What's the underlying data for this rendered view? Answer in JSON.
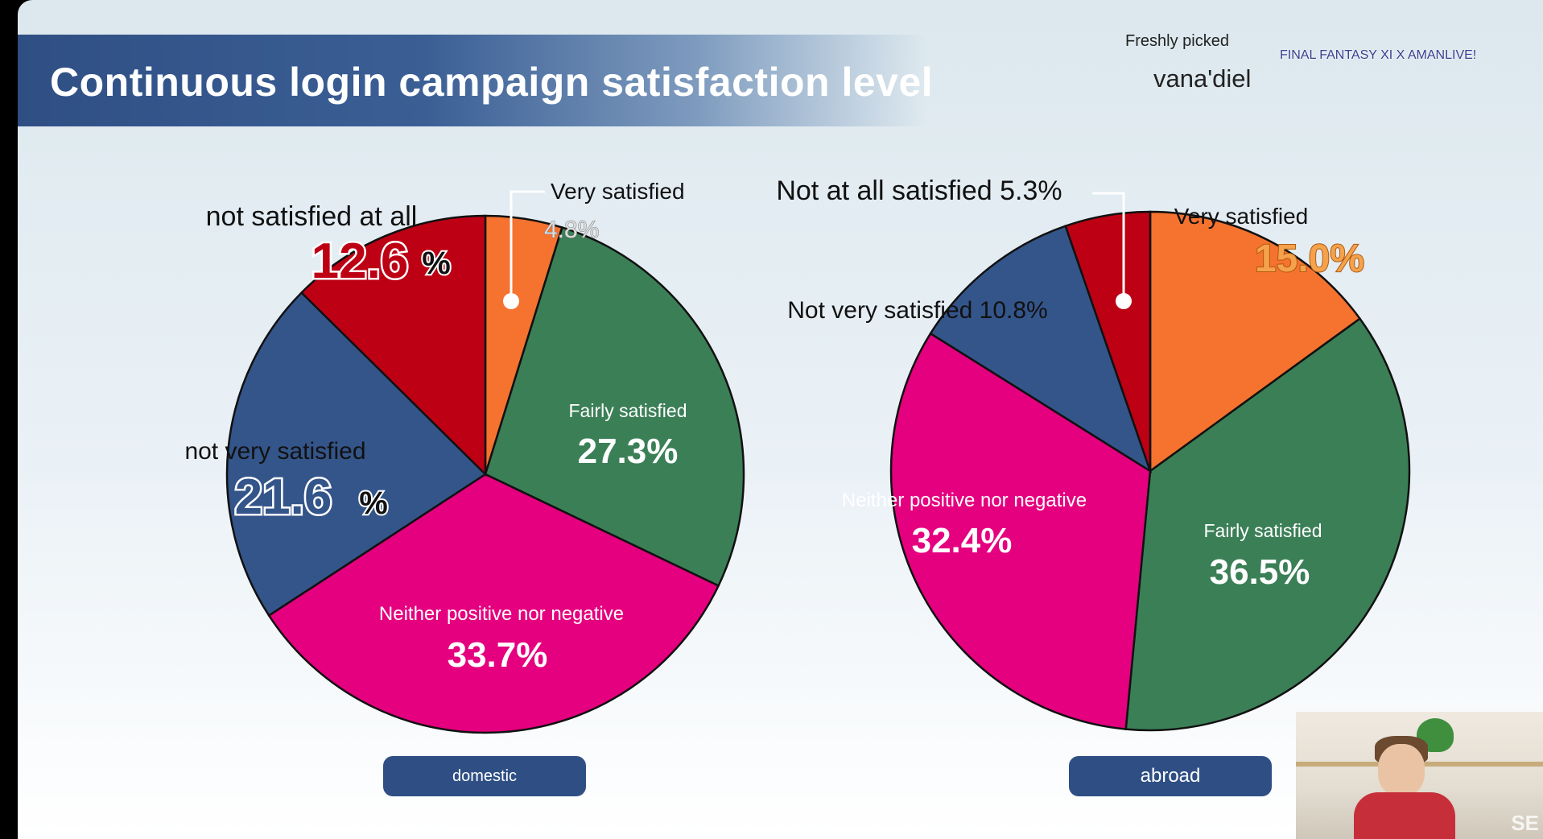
{
  "title": "Continuous login campaign satisfaction level",
  "brand": {
    "tagline": "Freshly picked",
    "name": "vana'diel",
    "logo_text": "FINAL FANTASY XI X AMANLIVE!"
  },
  "chart_data": [
    {
      "type": "pie",
      "name": "domestic",
      "slices": [
        {
          "label": "Very satisfied",
          "value": 4.8,
          "display": "4.8%",
          "color": "#f5722f"
        },
        {
          "label": "Fairly satisfied",
          "value": 27.3,
          "display": "27.3%",
          "color": "#3b7f57"
        },
        {
          "label": "Neither positive nor negative",
          "value": 33.7,
          "display": "33.7%",
          "color": "#e5007f"
        },
        {
          "label": "not very satisfied",
          "value": 21.6,
          "display": "21.6",
          "color": "#34558a"
        },
        {
          "label": "not satisfied at all",
          "value": 12.6,
          "display": "12.6",
          "color": "#bd0014"
        }
      ]
    },
    {
      "type": "pie",
      "name": "abroad",
      "slices": [
        {
          "label": "Very satisfied",
          "value": 15.0,
          "display": "15.0%",
          "color": "#f5722f"
        },
        {
          "label": "Fairly satisfied",
          "value": 36.5,
          "display": "36.5%",
          "color": "#3b7f57"
        },
        {
          "label": "Neither positive nor negative",
          "value": 32.4,
          "display": "32.4%",
          "color": "#e5007f"
        },
        {
          "label": "Not very satisfied 10.8%",
          "value": 10.8,
          "display": "",
          "color": "#34558a"
        },
        {
          "label": "Not at all satisfied 5.3%",
          "value": 5.3,
          "display": "",
          "color": "#bd0014"
        }
      ]
    }
  ],
  "buttons": {
    "domestic": "domestic",
    "abroad": "abroad"
  },
  "percent_sign": "%"
}
